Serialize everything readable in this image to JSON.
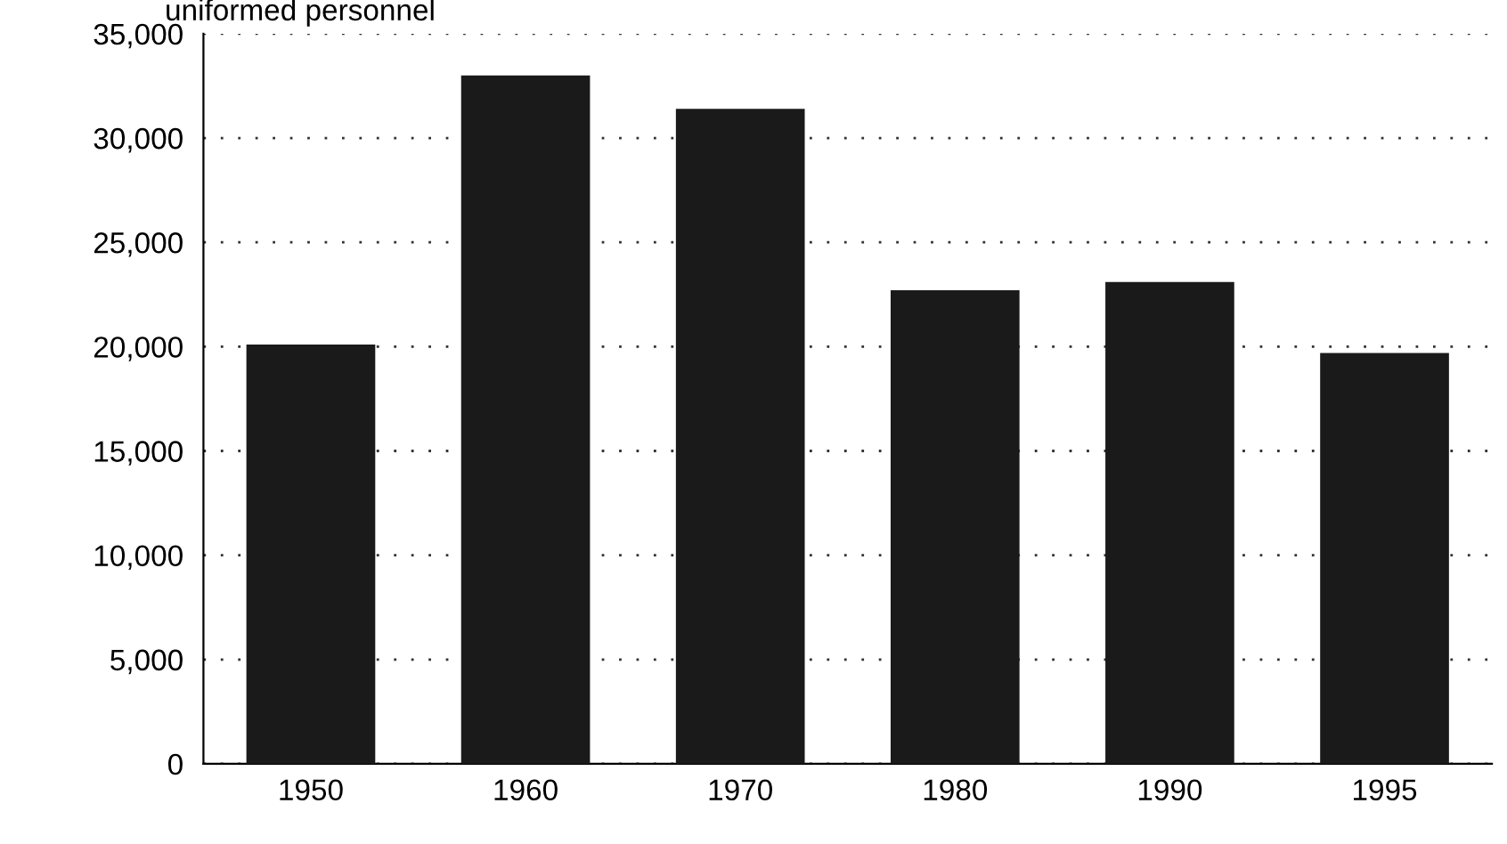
{
  "chart_data": {
    "type": "bar",
    "ylabel": "uniformed personnel",
    "categories": [
      "1950",
      "1960",
      "1970",
      "1980",
      "1990",
      "1995"
    ],
    "values": [
      20100,
      33000,
      31400,
      22700,
      23100,
      19700
    ],
    "color": "#1a1a1a",
    "ylim": [
      0,
      35000
    ],
    "yticks": [
      {
        "value": 0,
        "label": "0"
      },
      {
        "value": 5000,
        "label": "5,000"
      },
      {
        "value": 10000,
        "label": "10,000"
      },
      {
        "value": 15000,
        "label": "15,000"
      },
      {
        "value": 20000,
        "label": "20,000"
      },
      {
        "value": 25000,
        "label": "25,000"
      },
      {
        "value": 30000,
        "label": "30,000"
      },
      {
        "value": 35000,
        "label": "35,000"
      }
    ],
    "grid": "y"
  }
}
